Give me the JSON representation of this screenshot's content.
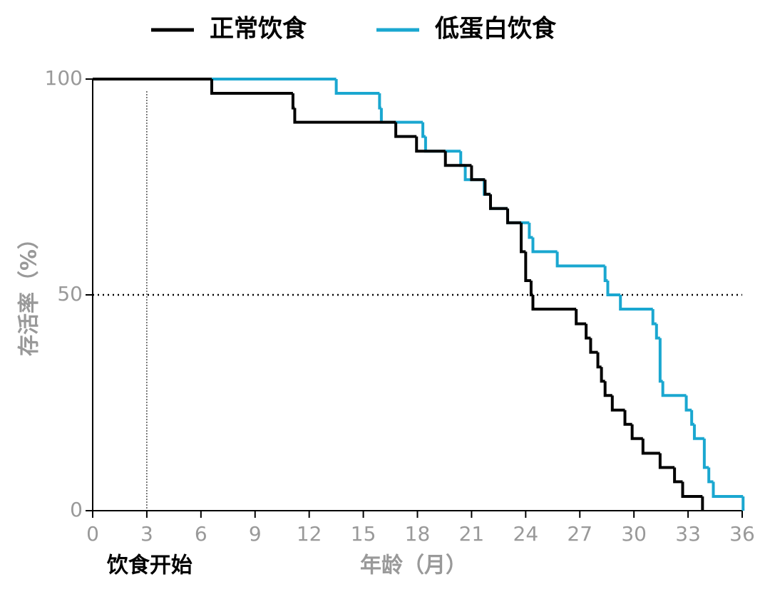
{
  "chart_data": {
    "type": "step",
    "x_label": "年龄（月）",
    "y_label": "存活率（%）",
    "xlim": [
      0,
      36
    ],
    "xticks": [
      0,
      3,
      6,
      9,
      12,
      15,
      18,
      21,
      24,
      27,
      30,
      33,
      36
    ],
    "ylim": [
      0,
      100
    ],
    "yticks": [
      0,
      50,
      100
    ],
    "hline": 50,
    "annotation": {
      "text": "饮食开始",
      "x": 3
    },
    "legend": "top",
    "series": [
      {
        "name": "正常饮食",
        "color": "#000000",
        "x": [
          0,
          6.6,
          11.1,
          11.2,
          16.8,
          17.95,
          19.55,
          21.0,
          21.75,
          22.05,
          23.0,
          23.75,
          24.0,
          24.3,
          24.4,
          26.8,
          27.35,
          27.6,
          28.0,
          28.2,
          28.4,
          28.8,
          29.5,
          29.9,
          30.5,
          31.45,
          32.25,
          32.7,
          33.8
        ],
        "values": [
          100,
          96.7,
          93.3,
          90,
          86.7,
          83.3,
          80,
          76.7,
          73.3,
          70,
          66.7,
          60,
          53.3,
          50,
          46.7,
          43.3,
          40,
          36.7,
          33.3,
          30,
          26.7,
          23.3,
          20,
          16.7,
          13.3,
          10,
          6.7,
          3.3,
          0
        ]
      },
      {
        "name": "低蛋白饮食",
        "color": "#1aa7d0",
        "x": [
          0,
          13.5,
          15.9,
          16.0,
          18.3,
          18.45,
          20.4,
          20.65,
          21.7,
          22.05,
          23.0,
          24.2,
          24.4,
          25.75,
          28.4,
          28.55,
          29.25,
          31.05,
          31.25,
          31.45,
          31.6,
          32.9,
          33.2,
          33.35,
          33.9,
          34.15,
          34.4,
          36.05
        ],
        "values": [
          100,
          96.7,
          93.3,
          90,
          86.7,
          83.3,
          80,
          76.7,
          73.3,
          70,
          66.7,
          63.3,
          60,
          56.7,
          53.3,
          50,
          46.7,
          43.3,
          40,
          30,
          26.7,
          23.3,
          20,
          16.7,
          10,
          6.7,
          3.3,
          0
        ]
      }
    ]
  }
}
